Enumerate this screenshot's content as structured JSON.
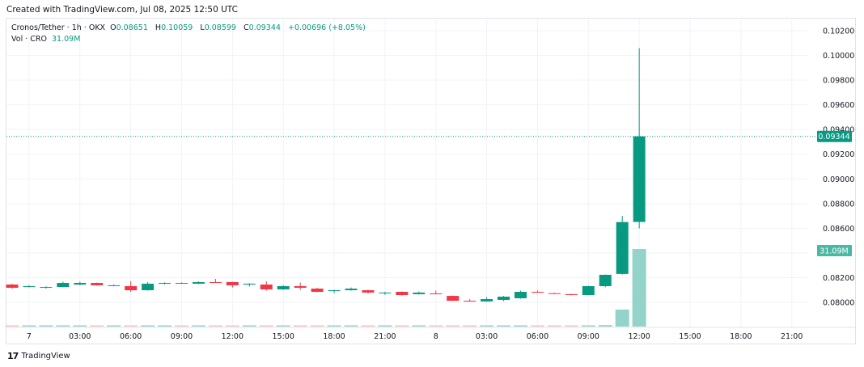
{
  "header": {
    "created": "Created with TradingView.com, Jul 08, 2025 12:50 UTC"
  },
  "legend": {
    "symbol": "Cronos/Tether · 1h · OKX",
    "o_label": "O",
    "o": "0.08651",
    "h_label": "H",
    "h": "0.10059",
    "l_label": "L",
    "l": "0.08599",
    "c_label": "C",
    "c": "0.09344",
    "change": "+0.00696 (+8.05%)",
    "vol_label": "Vol · CRO",
    "vol": "31.09M"
  },
  "footer": {
    "brand": "TradingView",
    "logo_icon": "tradingview-logo-icon"
  },
  "colors": {
    "up": "#089981",
    "down": "#f23645",
    "vol_up": "#93d3c9",
    "vol_down": "#f7c1c1",
    "grid": "#f0f3fa"
  },
  "chart_data": {
    "type": "candlestick",
    "title": "Cronos/Tether · 1h · OKX",
    "interval": "1h",
    "ylim": [
      0.0779,
      0.1025
    ],
    "y_ticks": [
      "0.08000",
      "0.08200",
      "0.08600",
      "0.08800",
      "0.09000",
      "0.09200",
      "0.09400",
      "0.09600",
      "0.09800",
      "0.10000",
      "0.10200"
    ],
    "y_tick_values": [
      0.08,
      0.082,
      0.086,
      0.088,
      0.09,
      0.092,
      0.094,
      0.096,
      0.098,
      0.1,
      0.102
    ],
    "x_ticks": [
      {
        "label": "7",
        "hour": 1
      },
      {
        "label": "03:00",
        "hour": 4
      },
      {
        "label": "06:00",
        "hour": 7
      },
      {
        "label": "09:00",
        "hour": 10
      },
      {
        "label": "12:00",
        "hour": 13
      },
      {
        "label": "15:00",
        "hour": 16
      },
      {
        "label": "18:00",
        "hour": 19
      },
      {
        "label": "21:00",
        "hour": 22
      },
      {
        "label": "8",
        "hour": 25
      },
      {
        "label": "03:00",
        "hour": 28
      },
      {
        "label": "06:00",
        "hour": 31
      },
      {
        "label": "09:00",
        "hour": 34
      },
      {
        "label": "12:00",
        "hour": 37
      },
      {
        "label": "15:00",
        "hour": 40
      },
      {
        "label": "18:00",
        "hour": 43
      },
      {
        "label": "21:00",
        "hour": 46
      }
    ],
    "last_price": {
      "value": 0.09344,
      "label": "0.09344"
    },
    "last_volume": {
      "value": 31.09,
      "label": "31.09M"
    },
    "candles": [
      [
        0.08144,
        0.0815,
        0.0811,
        0.08118,
        0.3
      ],
      [
        0.08128,
        0.0814,
        0.0812,
        0.08131,
        0.25
      ],
      [
        0.08122,
        0.0813,
        0.08112,
        0.08124,
        0.2
      ],
      [
        0.08124,
        0.08168,
        0.08122,
        0.08157,
        0.3
      ],
      [
        0.08144,
        0.08168,
        0.08138,
        0.08157,
        0.3
      ],
      [
        0.08157,
        0.0816,
        0.08135,
        0.08138,
        0.3
      ],
      [
        0.08136,
        0.08145,
        0.0813,
        0.08138,
        0.2
      ],
      [
        0.08131,
        0.0817,
        0.08085,
        0.08098,
        0.35
      ],
      [
        0.08098,
        0.08164,
        0.08095,
        0.08151,
        0.35
      ],
      [
        0.08155,
        0.08162,
        0.08145,
        0.08157,
        0.2
      ],
      [
        0.08157,
        0.08162,
        0.0815,
        0.08154,
        0.2
      ],
      [
        0.08151,
        0.0817,
        0.08148,
        0.08164,
        0.3
      ],
      [
        0.08164,
        0.0819,
        0.08158,
        0.08162,
        0.3
      ],
      [
        0.08164,
        0.08166,
        0.0812,
        0.08138,
        0.3
      ],
      [
        0.08144,
        0.08155,
        0.08128,
        0.08151,
        0.3
      ],
      [
        0.08144,
        0.0817,
        0.08095,
        0.08105,
        0.45
      ],
      [
        0.08105,
        0.0814,
        0.081,
        0.08131,
        0.3
      ],
      [
        0.08131,
        0.0816,
        0.081,
        0.08118,
        0.3
      ],
      [
        0.08111,
        0.08118,
        0.08082,
        0.08085,
        0.3
      ],
      [
        0.08092,
        0.08102,
        0.08075,
        0.08098,
        0.3
      ],
      [
        0.08098,
        0.0812,
        0.08095,
        0.08111,
        0.2
      ],
      [
        0.08098,
        0.081,
        0.0807,
        0.08079,
        0.3
      ],
      [
        0.08076,
        0.08085,
        0.0806,
        0.08079,
        0.2
      ],
      [
        0.08085,
        0.08088,
        0.08055,
        0.08059,
        0.3
      ],
      [
        0.08066,
        0.08088,
        0.08063,
        0.08079,
        0.2
      ],
      [
        0.08072,
        0.08095,
        0.08065,
        0.0807,
        0.3
      ],
      [
        0.08052,
        0.08054,
        0.08011,
        0.08013,
        0.45
      ],
      [
        0.08013,
        0.08025,
        0.08005,
        0.08011,
        0.3
      ],
      [
        0.08007,
        0.08042,
        0.08005,
        0.08026,
        0.3
      ],
      [
        0.0802,
        0.08052,
        0.0801,
        0.08046,
        0.3
      ],
      [
        0.08033,
        0.08095,
        0.0803,
        0.08085,
        0.3
      ],
      [
        0.08085,
        0.08095,
        0.08078,
        0.08081,
        0.3
      ],
      [
        0.08074,
        0.08078,
        0.08068,
        0.0807,
        0.2
      ],
      [
        0.08066,
        0.08068,
        0.08057,
        0.08059,
        0.25
      ],
      [
        0.08059,
        0.08135,
        0.08057,
        0.08131,
        0.35
      ],
      [
        0.08131,
        0.08225,
        0.08122,
        0.08223,
        0.6
      ],
      [
        0.0823,
        0.087,
        0.08225,
        0.0865,
        6.8
      ],
      [
        0.08651,
        0.10059,
        0.08599,
        0.09344,
        31.09
      ]
    ],
    "candle_fields": [
      "open",
      "high",
      "low",
      "close",
      "volume_millions"
    ],
    "grid": true
  }
}
